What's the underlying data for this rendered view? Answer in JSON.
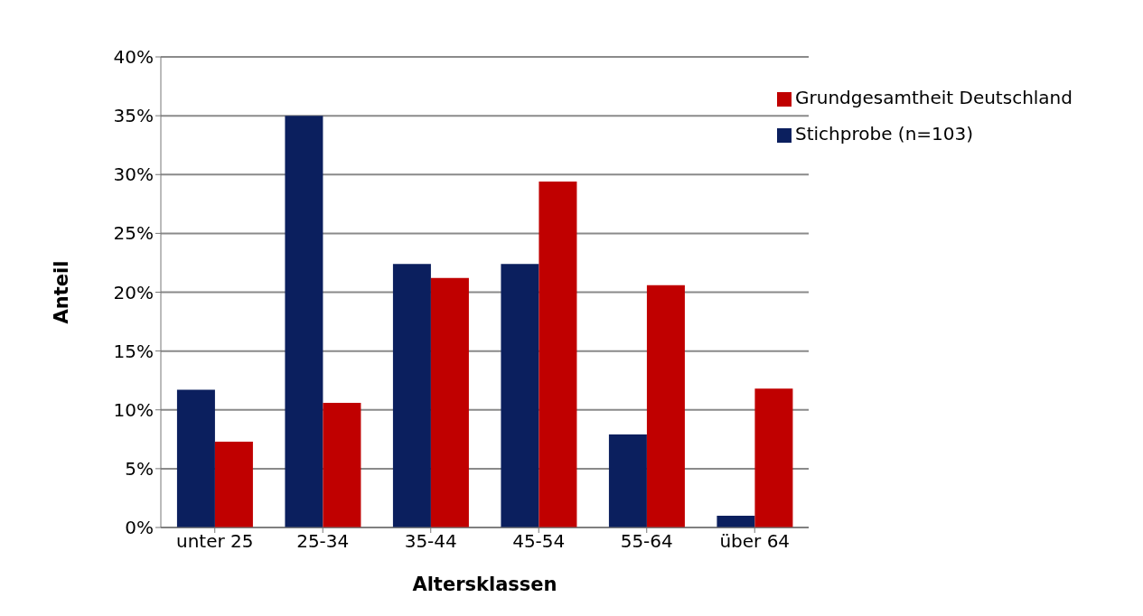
{
  "chart_data": {
    "type": "bar",
    "xlabel": "Altersklassen",
    "ylabel": "Anteil",
    "categories": [
      "unter 25",
      "25-34",
      "35-44",
      "45-54",
      "55-64",
      "über 64"
    ],
    "series": [
      {
        "name": "Stichprobe (n=103)",
        "color": "#0b1f5e",
        "values": [
          11.7,
          35,
          22.4,
          22.4,
          7.9,
          1
        ]
      },
      {
        "name": "Grundgesamtheit Deutschland",
        "color": "#c00000",
        "values": [
          7.3,
          10.6,
          21.2,
          29.4,
          20.6,
          11.8
        ]
      }
    ],
    "ylim": [
      0,
      40
    ],
    "yticks": [
      {
        "value": 0,
        "label": "0%"
      },
      {
        "value": 5,
        "label": "5%"
      },
      {
        "value": 10,
        "label": "10%"
      },
      {
        "value": 15,
        "label": "15%"
      },
      {
        "value": 20,
        "label": "20%"
      },
      {
        "value": 25,
        "label": "25%"
      },
      {
        "value": 30,
        "label": "30%"
      },
      {
        "value": 35,
        "label": "35%"
      },
      {
        "value": 40,
        "label": "40%"
      }
    ],
    "grid": "y",
    "legend": "top right"
  }
}
